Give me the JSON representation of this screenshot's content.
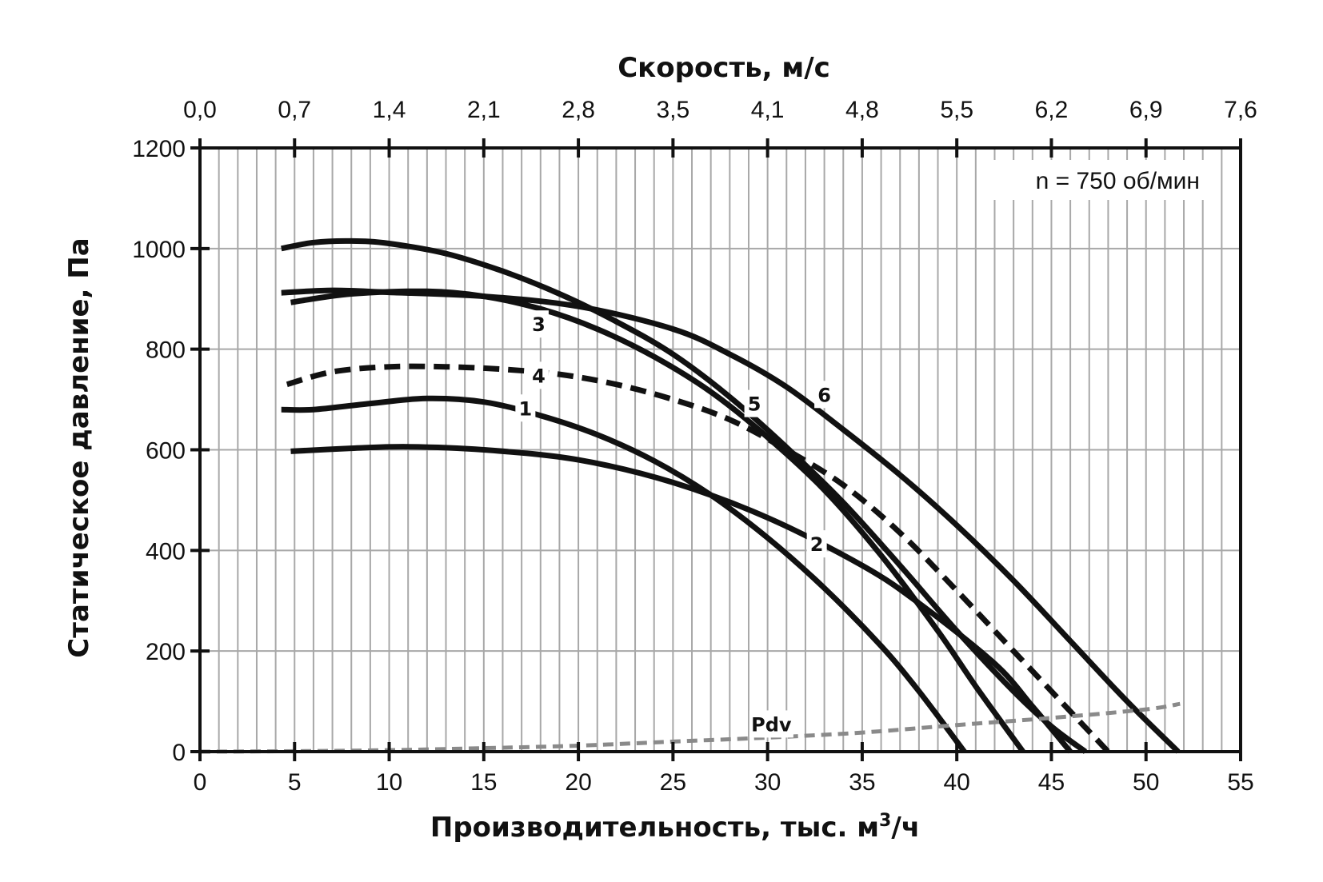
{
  "chart_data": {
    "type": "line",
    "xlabel_main": "Производительность, тыс. м",
    "xlabel_sup": "3",
    "xlabel_tail": "/ч",
    "ylabel": "Статическое давление, Па",
    "x2label": "Скорость, м/с",
    "annotation": "n = 750 об/мин",
    "xlim": [
      0,
      55
    ],
    "ylim": [
      0,
      1200
    ],
    "grid": true,
    "x_ticks": [
      "0",
      "5",
      "10",
      "15",
      "20",
      "25",
      "30",
      "35",
      "40",
      "45",
      "50",
      "55"
    ],
    "y_ticks": [
      "0",
      "200",
      "400",
      "600",
      "800",
      "1000",
      "1200"
    ],
    "x2_ticks": [
      "0,0",
      "0,7",
      "1,4",
      "2,1",
      "2,8",
      "3,5",
      "4,1",
      "4,8",
      "5,5",
      "6,2",
      "6,9",
      "7,6"
    ],
    "series": [
      {
        "name": "1",
        "style": "solid",
        "label_at": [
          17.2,
          683
        ],
        "x": [
          4.3,
          6,
          9,
          12,
          15,
          18,
          21,
          24,
          27,
          30,
          33,
          36,
          38,
          40.4
        ],
        "y": [
          680,
          680,
          692,
          702,
          695,
          668,
          630,
          578,
          510,
          425,
          325,
          210,
          120,
          0
        ]
      },
      {
        "name": "2",
        "style": "solid",
        "label_at": [
          32.6,
          413
        ],
        "x": [
          4.8,
          8,
          11,
          15,
          20,
          25,
          30,
          35,
          38,
          42,
          44,
          46
        ],
        "y": [
          597,
          603,
          606,
          600,
          580,
          535,
          465,
          370,
          295,
          175,
          90,
          0
        ]
      },
      {
        "name": "3",
        "style": "solid",
        "label_at": [
          17.9,
          850
        ],
        "x": [
          4.8,
          8,
          12,
          15,
          18,
          21,
          24,
          27,
          30,
          33,
          36,
          39,
          41,
          43.5
        ],
        "y": [
          893,
          910,
          915,
          905,
          880,
          840,
          785,
          715,
          625,
          520,
          390,
          240,
          130,
          0
        ]
      },
      {
        "name": "4",
        "style": "dashed",
        "label_at": [
          17.9,
          748
        ],
        "x": [
          4.6,
          7,
          10,
          13,
          16,
          19,
          22,
          25,
          28,
          31,
          34,
          37,
          40,
          43,
          45,
          46.5,
          48
        ],
        "y": [
          730,
          755,
          765,
          765,
          760,
          750,
          730,
          700,
          660,
          600,
          530,
          435,
          320,
          200,
          120,
          60,
          0
        ]
      },
      {
        "name": "5",
        "style": "solid",
        "label_at": [
          29.3,
          692
        ],
        "x": [
          4.3,
          6,
          8,
          10,
          13,
          16,
          19,
          22,
          25,
          28,
          31,
          34,
          37,
          40,
          43,
          45,
          46.8
        ],
        "y": [
          1000,
          1012,
          1015,
          1010,
          990,
          955,
          910,
          855,
          790,
          705,
          605,
          495,
          370,
          240,
          120,
          50,
          0
        ]
      },
      {
        "name": "6",
        "style": "solid",
        "label_at": [
          33,
          710
        ],
        "x": [
          4.3,
          7,
          10,
          15,
          20,
          25,
          28,
          31,
          34,
          37,
          40,
          43,
          46,
          49,
          51.7
        ],
        "y": [
          912,
          917,
          913,
          905,
          885,
          840,
          790,
          725,
          640,
          550,
          450,
          340,
          220,
          100,
          0
        ]
      },
      {
        "name": "Pdv",
        "style": "dashed-gray",
        "label_at": [
          30.2,
          55
        ],
        "x": [
          0,
          5,
          10,
          15,
          20,
          25,
          30,
          35,
          40,
          45,
          50,
          51.8
        ],
        "y": [
          0,
          1,
          3,
          7,
          12,
          20,
          28,
          38,
          53,
          67,
          84,
          95
        ]
      }
    ]
  }
}
